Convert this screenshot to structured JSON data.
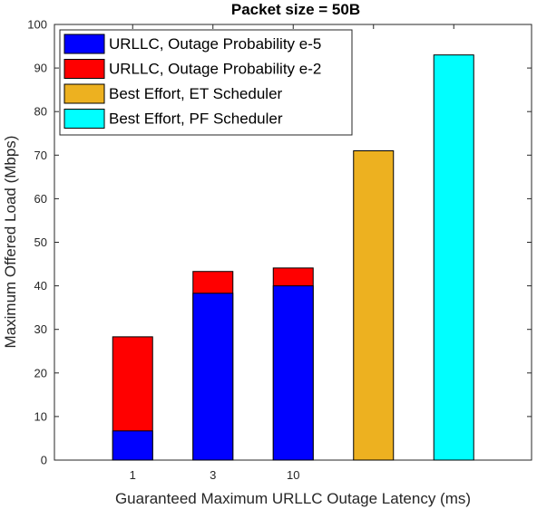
{
  "chart_data": {
    "type": "bar",
    "title": "Packet size = 50B",
    "xlabel": "Guaranteed Maximum URLLC Outage Latency (ms)",
    "ylabel": "Maximum Offered Load (Mbps)",
    "ylim": [
      0,
      100
    ],
    "yticks": [
      0,
      10,
      20,
      30,
      40,
      50,
      60,
      70,
      80,
      90,
      100
    ],
    "grid": false,
    "legend_position": "top-left",
    "categories": [
      "1",
      "3",
      "10",
      "",
      ""
    ],
    "series": [
      {
        "name": "URLLC, Outage Probability e-5",
        "color": "#0000ff",
        "values": [
          6.7,
          38.3,
          40.0,
          null,
          null
        ]
      },
      {
        "name": "URLLC, Outage Probability e-2",
        "color": "#ff0000",
        "values": [
          28.3,
          43.3,
          44.1,
          null,
          null
        ]
      },
      {
        "name": "Best Effort, ET Scheduler",
        "color": "#edb120",
        "values": [
          null,
          null,
          null,
          71.0,
          null
        ]
      },
      {
        "name": "Best Effort, PF Scheduler",
        "color": "#00ffff",
        "values": [
          null,
          null,
          null,
          null,
          93.0
        ]
      }
    ]
  }
}
